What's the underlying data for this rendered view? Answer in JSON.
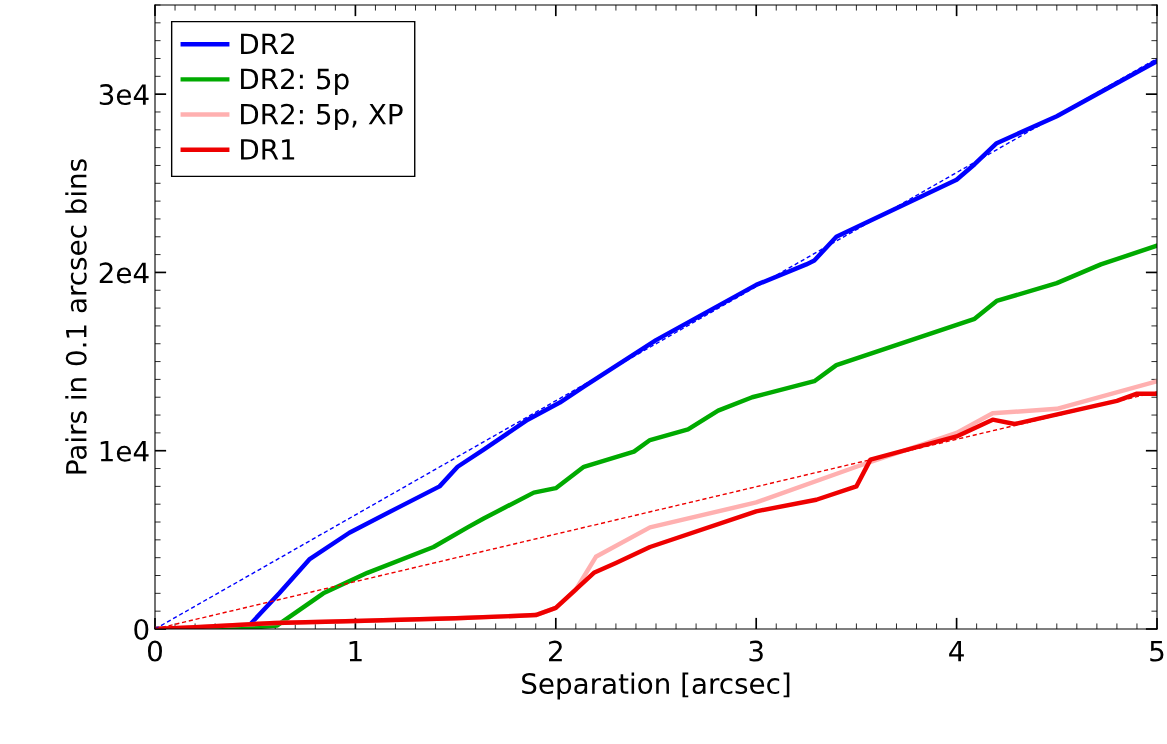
{
  "chart_data": {
    "type": "line",
    "xlabel": "Separation [arcsec]",
    "ylabel": "Pairs in 0.1 arcsec bins",
    "xlim": [
      0,
      5
    ],
    "xticks": [
      0,
      1,
      2,
      3,
      4,
      5
    ],
    "ylim": [
      0,
      35000
    ],
    "yticks": [
      0,
      {
        "value": 10000,
        "label": "1e4"
      },
      {
        "value": 20000,
        "label": "2e4"
      },
      {
        "value": 30000,
        "label": "3e4"
      }
    ],
    "legend": "top left",
    "grid": false,
    "marker": "none",
    "series": [
      {
        "name": "DR2",
        "color": "#0000ff",
        "line_style": "solid",
        "x": [
          0,
          0.3,
          0.47,
          0.62,
          0.77,
          0.97,
          1.22,
          1.42,
          1.51,
          1.64,
          1.86,
          2.02,
          2.14,
          2.5,
          3.0,
          3.25,
          3.29,
          3.4,
          4.0,
          4.09,
          4.2,
          4.5,
          5.0
        ],
        "values": [
          0,
          0,
          200,
          2000,
          3900,
          5400,
          6850,
          8000,
          9100,
          10060,
          11740,
          12700,
          13600,
          16200,
          19300,
          20450,
          20670,
          22000,
          25200,
          26070,
          27250,
          28760,
          31850
        ]
      },
      {
        "name": "DR2: 5p",
        "color": "#00aa00",
        "line_style": "solid",
        "x": [
          0,
          0.4,
          0.61,
          0.84,
          1.06,
          1.39,
          1.56,
          1.64,
          1.89,
          2.0,
          2.14,
          2.39,
          2.47,
          2.66,
          2.81,
          2.98,
          3.29,
          3.4,
          4.09,
          4.2,
          4.5,
          4.72,
          5.0
        ],
        "values": [
          0,
          0,
          200,
          2000,
          3150,
          4600,
          5700,
          6200,
          7650,
          7900,
          9100,
          9950,
          10600,
          11200,
          12250,
          13000,
          13900,
          14800,
          17400,
          18400,
          19400,
          20450,
          21500
        ]
      },
      {
        "name": "DR2: 5p, XP",
        "color": "#ffb0b0",
        "line_style": "solid",
        "x": [
          0,
          0.2,
          0.6,
          1.0,
          1.5,
          1.9,
          2.0,
          2.1,
          2.2,
          2.47,
          3.0,
          3.5,
          4.0,
          4.18,
          4.5,
          5.0
        ],
        "values": [
          0,
          100,
          340,
          450,
          600,
          780,
          1180,
          2200,
          4050,
          5700,
          7100,
          9100,
          11000,
          12100,
          12350,
          13900
        ]
      },
      {
        "name": "DR1",
        "color": "#ee0000",
        "line_style": "solid",
        "x": [
          0,
          0.2,
          0.6,
          1.0,
          1.5,
          1.9,
          2.0,
          2.19,
          2.3,
          2.47,
          3.0,
          3.3,
          3.5,
          3.57,
          4.0,
          4.18,
          4.29,
          4.8,
          4.9,
          5.0
        ],
        "values": [
          0,
          100,
          340,
          450,
          600,
          780,
          1180,
          3150,
          3700,
          4600,
          6600,
          7250,
          8000,
          9500,
          10800,
          11740,
          11500,
          12800,
          13200,
          13200
        ]
      },
      {
        "color": "#0000ff",
        "line_style": "dashed",
        "x": [
          0,
          5
        ],
        "values": [
          0,
          32000
        ]
      },
      {
        "color": "#ee0000",
        "line_style": "dashed",
        "x": [
          0,
          5
        ],
        "values": [
          0,
          13300
        ]
      }
    ]
  }
}
